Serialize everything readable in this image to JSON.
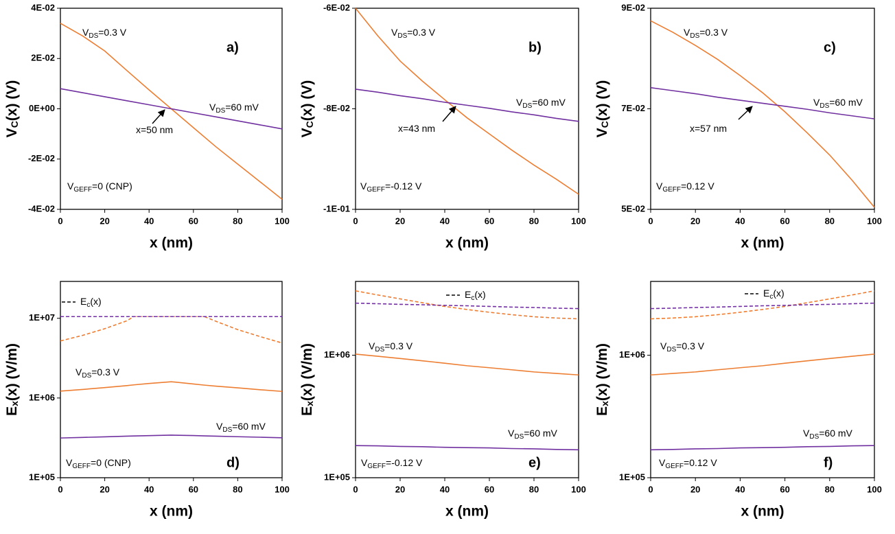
{
  "chart_data": [
    {
      "type": "line",
      "panel_label": "a)",
      "xlabel": "x (nm)",
      "ylabel": {
        "main": "V",
        "sub": "C",
        "tail": "(x) (V)"
      },
      "xlim": [
        0,
        100
      ],
      "xticks": [
        0,
        20,
        40,
        60,
        80,
        100
      ],
      "ylim": [
        -0.04,
        0.04
      ],
      "yticks": [
        {
          "value": -0.04,
          "label": "-4E-02"
        },
        {
          "value": -0.02,
          "label": "-2E-02"
        },
        {
          "value": 0,
          "label": "0E+00"
        },
        {
          "value": 0.02,
          "label": "2E-02"
        },
        {
          "value": 0.04,
          "label": "4E-02"
        }
      ],
      "x": [
        0,
        10,
        20,
        30,
        40,
        50,
        60,
        70,
        80,
        90,
        100
      ],
      "series": [
        {
          "color": "#ed7d31",
          "values": [
            0.034,
            0.029,
            0.023,
            0.0152,
            0.0075,
            0,
            -0.0075,
            -0.015,
            -0.022,
            -0.029,
            -0.036
          ]
        },
        {
          "color": "#7030a0",
          "values": [
            0.008,
            0.0064,
            0.0048,
            0.0032,
            0.0016,
            0,
            -0.0016,
            -0.0032,
            -0.0048,
            -0.0064,
            -0.008
          ]
        }
      ],
      "annotations": [
        {
          "main": "V",
          "sub": "DS",
          "tail": "=0.3 V",
          "color": "#ed7d31"
        },
        {
          "main": "V",
          "sub": "DS",
          "tail": "=60 mV",
          "color": "#7030a0"
        },
        {
          "main": "x=50 nm",
          "color": "#000000"
        },
        {
          "main": "V",
          "sub": "GEFF",
          "tail": "=0 (CNP)",
          "color": "#000000"
        }
      ]
    },
    {
      "type": "line",
      "panel_label": "b)",
      "xlabel": "x (nm)",
      "ylabel": {
        "main": "V",
        "sub": "C",
        "tail": "(x) (V)"
      },
      "xlim": [
        0,
        100
      ],
      "xticks": [
        0,
        20,
        40,
        60,
        80,
        100
      ],
      "ylim": [
        -0.1,
        -0.06
      ],
      "yticks": [
        {
          "value": -0.1,
          "label": "-1E-01"
        },
        {
          "value": -0.08,
          "label": "-8E-02"
        },
        {
          "value": -0.06,
          "label": "-6E-02"
        }
      ],
      "x": [
        0,
        10,
        20,
        30,
        40,
        50,
        60,
        70,
        80,
        90,
        100
      ],
      "series": [
        {
          "color": "#ed7d31",
          "values": [
            -0.06,
            -0.0655,
            -0.0705,
            -0.0745,
            -0.0782,
            -0.0818,
            -0.085,
            -0.0882,
            -0.0912,
            -0.094,
            -0.097
          ]
        },
        {
          "color": "#7030a0",
          "values": [
            -0.0761,
            -0.0767,
            -0.0774,
            -0.078,
            -0.0787,
            -0.0793,
            -0.0799,
            -0.0806,
            -0.0812,
            -0.0819,
            -0.0825
          ]
        }
      ],
      "annotations": [
        {
          "main": "V",
          "sub": "DS",
          "tail": "=0.3 V",
          "color": "#ed7d31"
        },
        {
          "main": "V",
          "sub": "DS",
          "tail": "=60 mV",
          "color": "#7030a0"
        },
        {
          "main": "x=43 nm",
          "color": "#000000"
        },
        {
          "main": "V",
          "sub": "GEFF",
          "tail": "=-0.12 V",
          "color": "#000000"
        }
      ]
    },
    {
      "type": "line",
      "panel_label": "c)",
      "xlabel": "x (nm)",
      "ylabel": {
        "main": "V",
        "sub": "C",
        "tail": "(x) (V)"
      },
      "xlim": [
        0,
        100
      ],
      "xticks": [
        0,
        20,
        40,
        60,
        80,
        100
      ],
      "ylim": [
        0.05,
        0.09
      ],
      "yticks": [
        {
          "value": 0.05,
          "label": "5E-02"
        },
        {
          "value": 0.07,
          "label": "7E-02"
        },
        {
          "value": 0.09,
          "label": "9E-02"
        }
      ],
      "x": [
        0,
        10,
        20,
        30,
        40,
        50,
        60,
        70,
        80,
        90,
        100
      ],
      "series": [
        {
          "color": "#ed7d31",
          "values": [
            0.0875,
            0.0852,
            0.0826,
            0.0798,
            0.0766,
            0.0732,
            0.0694,
            0.0652,
            0.0608,
            0.0558,
            0.0504
          ]
        },
        {
          "color": "#7030a0",
          "values": [
            0.0742,
            0.0736,
            0.073,
            0.0723,
            0.0717,
            0.0711,
            0.0705,
            0.0699,
            0.0692,
            0.0686,
            0.068
          ]
        }
      ],
      "annotations": [
        {
          "main": "V",
          "sub": "DS",
          "tail": "=0.3 V",
          "color": "#ed7d31"
        },
        {
          "main": "V",
          "sub": "DS",
          "tail": "=60 mV",
          "color": "#7030a0"
        },
        {
          "main": "x=57 nm",
          "color": "#000000"
        },
        {
          "main": "V",
          "sub": "GEFF",
          "tail": "=0.12 V",
          "color": "#000000"
        }
      ]
    },
    {
      "type": "line",
      "panel_label": "d)",
      "log_y": true,
      "xlabel": "x (nm)",
      "ylabel": {
        "main": "E",
        "sub": "x",
        "tail": "(x) (V/m)"
      },
      "xlim": [
        0,
        100
      ],
      "xticks": [
        0,
        20,
        40,
        60,
        80,
        100
      ],
      "ylim": [
        100000,
        29000000
      ],
      "yticks": [
        {
          "value": 100000,
          "label": "1E+05"
        },
        {
          "value": 1000000,
          "label": "1E+06"
        },
        {
          "value": 10000000,
          "label": "1E+07"
        }
      ],
      "x": [
        0,
        10,
        20,
        30,
        33,
        40,
        50,
        60,
        65,
        70,
        80,
        90,
        100
      ],
      "series": [
        {
          "color": "#ed7d31",
          "dashed": true,
          "values": [
            5200000,
            6100000,
            7400000,
            9300000,
            10500000,
            10500000,
            10500000,
            10500000,
            10500000,
            9200000,
            7200000,
            5900000,
            4900000
          ]
        },
        {
          "color": "#7030a0",
          "dashed": true,
          "values": [
            10500000,
            10500000,
            10500000,
            10500000,
            10500000,
            10500000,
            10500000,
            10500000,
            10500000,
            10500000,
            10500000,
            10500000,
            10500000
          ]
        },
        {
          "color": "#ed7d31",
          "values": [
            1220000,
            1280000,
            1350000,
            1430000,
            1460000,
            1520000,
            1600000,
            1500000,
            1450000,
            1410000,
            1340000,
            1270000,
            1210000
          ]
        },
        {
          "color": "#7030a0",
          "values": [
            315000,
            320000,
            326000,
            332000,
            334000,
            337000,
            342000,
            338000,
            335000,
            332000,
            327000,
            322000,
            317000
          ]
        }
      ],
      "legend": {
        "main": "E",
        "sub": "c",
        "tail": "(x)"
      },
      "annotations": [
        {
          "main": "V",
          "sub": "DS",
          "tail": "=0.3 V",
          "color": "#ed7d31"
        },
        {
          "main": "V",
          "sub": "DS",
          "tail": "=60 mV",
          "color": "#7030a0"
        },
        {
          "main": "V",
          "sub": "GEFF",
          "tail": "=0 (CNP)",
          "color": "#000000"
        }
      ]
    },
    {
      "type": "line",
      "panel_label": "e)",
      "log_y": true,
      "xlabel": "x (nm)",
      "ylabel": {
        "main": "E",
        "sub": "x",
        "tail": "(x) (V/m)"
      },
      "xlim": [
        0,
        100
      ],
      "xticks": [
        0,
        20,
        40,
        60,
        80,
        100
      ],
      "ylim": [
        100000,
        4000000
      ],
      "yticks": [
        {
          "value": 100000,
          "label": "1E+05"
        },
        {
          "value": 1000000,
          "label": "1E+06"
        }
      ],
      "x": [
        0,
        10,
        20,
        30,
        40,
        50,
        60,
        70,
        80,
        90,
        100
      ],
      "series": [
        {
          "color": "#ed7d31",
          "dashed": true,
          "values": [
            3350000,
            3100000,
            2880000,
            2680000,
            2500000,
            2360000,
            2240000,
            2140000,
            2060000,
            2010000,
            1980000
          ]
        },
        {
          "color": "#7030a0",
          "dashed": true,
          "values": [
            2660000,
            2630000,
            2600000,
            2580000,
            2550000,
            2530000,
            2500000,
            2470000,
            2450000,
            2420000,
            2400000
          ]
        },
        {
          "color": "#ed7d31",
          "values": [
            1020000,
            980000,
            940000,
            900000,
            860000,
            820000,
            790000,
            760000,
            730000,
            710000,
            690000
          ]
        },
        {
          "color": "#7030a0",
          "values": [
            183000,
            182000,
            180000,
            179000,
            177000,
            176000,
            175000,
            173000,
            172000,
            170000,
            169000
          ]
        }
      ],
      "legend": {
        "main": "E",
        "sub": "c",
        "tail": "(x)"
      },
      "annotations": [
        {
          "main": "V",
          "sub": "DS",
          "tail": "=0.3 V",
          "color": "#ed7d31"
        },
        {
          "main": "V",
          "sub": "DS",
          "tail": "=60 mV",
          "color": "#7030a0"
        },
        {
          "main": "V",
          "sub": "GEFF",
          "tail": "=-0.12 V",
          "color": "#000000"
        }
      ]
    },
    {
      "type": "line",
      "panel_label": "f)",
      "log_y": true,
      "xlabel": "x (nm)",
      "ylabel": {
        "main": "E",
        "sub": "x",
        "tail": "(x) (V/m)"
      },
      "xlim": [
        0,
        100
      ],
      "xticks": [
        0,
        20,
        40,
        60,
        80,
        100
      ],
      "ylim": [
        100000,
        4000000
      ],
      "yticks": [
        {
          "value": 100000,
          "label": "1E+05"
        },
        {
          "value": 1000000,
          "label": "1E+06"
        }
      ],
      "x": [
        0,
        10,
        20,
        30,
        40,
        50,
        60,
        70,
        80,
        90,
        100
      ],
      "series": [
        {
          "color": "#ed7d31",
          "dashed": true,
          "values": [
            1980000,
            2010000,
            2060000,
            2140000,
            2240000,
            2360000,
            2500000,
            2680000,
            2880000,
            3100000,
            3350000
          ]
        },
        {
          "color": "#7030a0",
          "dashed": true,
          "values": [
            2400000,
            2420000,
            2450000,
            2470000,
            2500000,
            2530000,
            2550000,
            2580000,
            2600000,
            2630000,
            2660000
          ]
        },
        {
          "color": "#ed7d31",
          "values": [
            690000,
            710000,
            730000,
            760000,
            790000,
            820000,
            860000,
            900000,
            940000,
            980000,
            1020000
          ]
        },
        {
          "color": "#7030a0",
          "values": [
            169000,
            170000,
            172000,
            173000,
            175000,
            176000,
            177000,
            179000,
            180000,
            182000,
            183000
          ]
        }
      ],
      "legend": {
        "main": "E",
        "sub": "c",
        "tail": "(x)"
      },
      "annotations": [
        {
          "main": "V",
          "sub": "DS",
          "tail": "=0.3 V",
          "color": "#ed7d31"
        },
        {
          "main": "V",
          "sub": "DS",
          "tail": "=60 mV",
          "color": "#7030a0"
        },
        {
          "main": "V",
          "sub": "GEFF",
          "tail": "=0.12 V",
          "color": "#000000"
        }
      ]
    }
  ]
}
